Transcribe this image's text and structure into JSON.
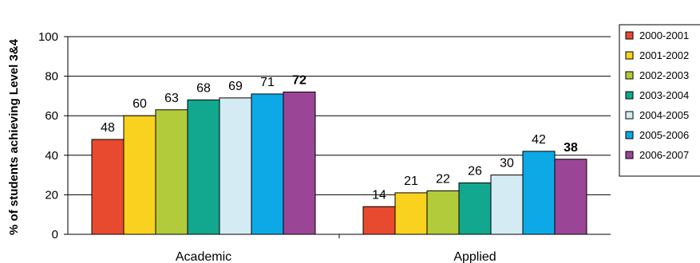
{
  "chart_data": {
    "type": "bar",
    "ylabel": "% of students achieving Level 3&4",
    "xlabel": "",
    "title": "",
    "ylim": [
      0,
      100
    ],
    "yticks": [
      0,
      20,
      40,
      60,
      80,
      100
    ],
    "grid": "horizontal",
    "legend_position": "right",
    "categories": [
      "Academic",
      "Applied"
    ],
    "series": [
      {
        "name": "2000-2001",
        "color": "#e84a2f",
        "values": [
          48,
          14
        ]
      },
      {
        "name": "2001-2002",
        "color": "#f9d21f",
        "values": [
          60,
          21
        ]
      },
      {
        "name": "2002-2003",
        "color": "#b2cb3a",
        "values": [
          63,
          22
        ]
      },
      {
        "name": "2003-2004",
        "color": "#12a88f",
        "values": [
          68,
          26
        ]
      },
      {
        "name": "2004-2005",
        "color": "#d4ebf4",
        "values": [
          69,
          30
        ]
      },
      {
        "name": "2005-2006",
        "color": "#0ca9e6",
        "values": [
          71,
          42
        ]
      },
      {
        "name": "2006-2007",
        "color": "#9b4597",
        "values": [
          72,
          38
        ]
      }
    ],
    "bold_series": "2006-2007"
  }
}
